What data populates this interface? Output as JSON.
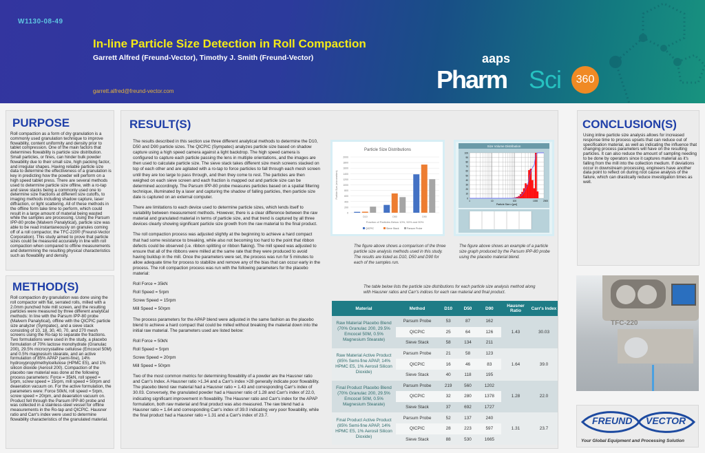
{
  "header": {
    "poster_code": "W1130-08-49",
    "title": "In-line Particle Size Detection in Roll Compaction",
    "authors": "Garrett Alfred (Freund-Vector), Timothy J. Smith (Freund-Vector)",
    "email": "garrett.alfred@freund-vector.com",
    "logo": {
      "aaps": "aaps",
      "pharm": "Pharm",
      "sci": "Sci",
      "num": "360"
    }
  },
  "purpose": {
    "title": "PURPOSE",
    "text": "Roll compaction as a form of dry granulation is a commonly used granulation technique to improve flowability, content uniformity and density prior to tablet compression.  One of the main factors that determines flowability is particle size distribution. Small particles, or fines, can hinder bulk powder flowability due to their small size, high packing factor, and irregular shapes.  Having reliable particle size data to determine the effectiveness of a granulation is key in predicting how the powder will perform on a high speed tablet press.  There are several methods used to determine particle size offline, with a ro-tap and sieve stacks being a commonly used one to determine size fractions at different size cutoffs, to imaging methods including shadow capture, laser diffraction, or light scattering.  All of these methods in the offline form take time to perform, which could result in a large amount of material being wasted while the samples are processing.  Using the Parsum IPP-80 probe (Malvern Panalytical), particle size was able to be read instantaneously on granules coming off of a roll compactor, the TFC-220® (Freund-Vector Corporation).  This study aimed to prove that particle sizes could be measured accurately in line with roll compaction when compared to offline measurements and determining the resulting physical characteristics such as flowability and density."
  },
  "methods": {
    "title": "METHOD(S)",
    "text": "Roll compaction dry granulation was done using the roll compactor with flat, serrated rolls, milled with a 2.0mm punched hole mill screen, and the resulting particles were measured by three different analytical methods: In line with the Parsum IPP-80 probe (Malvern Panalytical), offline with the QICPIC particle size analyzer (Sympatec), and a sieve stack consisting of 10, 18, 30, 40, 70, and 270 mesh screens using the Ro-tap to separate the fractions.  Two formulations were used in the study, a placebo formulation of 70% lactose monohydrate (Granulac 200), 29.5% microcrystalline cellulose (Emcocel 50M) and 0.5% magnesium stearate, and an active formulation of 85% APAP (semi-fine), 14% hydroxypropylmethylcellulose (HPMC E5), and 1% silicon dioxide (Aerosil 200). Compaction of the placebo raw material was done at the following process parameters: Force = 35kN, roll speed = 5rpm, screw speed = 15rpm, mill speed = 50rpm and deaeration vacuum on.  For the active formulation, the parameters were: Force 50kN, roll speed = 5rpm, screw speed = 20rpm, and deaeration vacuum on.  Product fell through the Parsum IPP-80 probe and was collected in a stainless-steel vessel for offline measurements in the Ro-tap and QICPIC.  Hausner ratio and Carr's index were used to determine flowability characteristics of the granulated material."
  },
  "results": {
    "title": "RESULT(S)",
    "p1": "The results described in this section use three different analytical methods to determine the D10, D50 and D90 particle sizes.  The QICPIC (Sympatec) analyzes particle size based on shadow capture using a high speed camera against a light backdrop.  The high speed camera is configured to capture each particle passing the lens in multiple orientations, and the images are then used to calculate particle size.  The sieve stack takes different size mesh screens stacked on top of each other and are agitated with a ro-tap to force particles to fall through each mesh screen until they are too large to pass through, and then they come to rest.  The particles are then weighed on each sieve screen and each fraction is mapped out and particle size can be determined accordingly.  The Parsum IPP-80 probe measures particles based on a spatial filtering technique, illuminated by a laser and capturing the shadow of falling particles, then particle size date is captured on an external computer.",
    "p2": "There are limitations to each device used to determine particle sizes, which lends itself to variability between measurement methods.  However, there is a clear difference between the raw material and granulated material in terms of particle size, and that trend is captured by all three devices clearly showing significant particle size growth from the raw material to the final product.",
    "p3": "The roll compaction process was adjusted slightly at the beginning to achieve a hard compact that had some resistance to breaking, while also not becoming too hard to the point that ribbon defects could be observed (i.e. ribbon splitting or ribbon flaking).  The mill speed was adjusted to ensure that all of the ribbons were milled at the same rate that they were produced to avoid having buildup in the mill.  Once the parameters were set, the process was run for 5 minutes to allow adequate time for process to stabilize and remove any of the bias that can occur early in the process.  The roll compaction process was run with the following parameters for the placebo material:",
    "placebo_params": [
      "Roll Force = 35kN",
      "Roll Speed = 5rpm",
      "Screw Speed = 15rpm",
      "Mill Speed = 50rpm"
    ],
    "p4": "The process parameters for the APAP blend were adjusted in the same fashion as the placebo blend to achieve a hard compact that could be milled without breaking the material down into the initial raw material.  The parameters used are listed below:",
    "apap_params": [
      "Roll Force = 50kN",
      "Roll Speed = 5rpm",
      "Screw Speed = 20rpm",
      "Mill Speed = 50rpm"
    ],
    "p5": "Two of the most common metrics for determining flowability of a powder are the Hausner ratio and Carr's Index.  A Hausner ratio >1.34 and a Carr's index >28 generally indicate poor flowability.  The placebo blend raw material had a Hausner ratio = 1.43 and corresponding Carr's index of 30.03.  Conversely, the granulated powder had a Hausner ratio of 1.28 and Carr's index of 22.0, indicating significant improvement in flowability.  The Hausner ratio and Carr's index for the APAP formulation, both raw material and final product was also measured.  The raw blend had a Hausner ratio = 1.64 and corresponding Carr's index of 39.0 indicating very poor flowability, while the final product had a Hausner ratio = 1.31 and a Carr's index of 23.7.",
    "caption1": "The figure above shows a comparison of the three particle size analysis methods used in this study.  The results are listed as D10, D50 and D90 for each of the samples run.",
    "caption2": "The figure above shows an example of a particle size graph produced by the Parsum IPP-80 probe using the placebo material blend.",
    "table_caption": "The table below lists the particle size distributions for each particle size analysis method along with Hausner ratios and Carr's indices for each raw material and final product."
  },
  "table": {
    "headers": [
      "Material",
      "Method",
      "D10",
      "D50",
      "D90",
      "Hausner Ratio",
      "Carr's Index"
    ],
    "groups": [
      {
        "material": "Raw Material Placebo Blend (70% Granulac 200, 29.5% Emcocel 50M, 0.5% Magnesium Stearate)",
        "hausner": "1.43",
        "carr": "30.03",
        "rows": [
          [
            "Parsum Probe",
            "53",
            "87",
            "162"
          ],
          [
            "QICPIC",
            "25",
            "64",
            "126"
          ],
          [
            "Sieve Stack",
            "58",
            "134",
            "211"
          ]
        ]
      },
      {
        "material": "Raw Material Active Product (85% Semi-fine APAP, 14% HPMC E5, 1% Aerosil Silicon Dioxide)",
        "hausner": "1.64",
        "carr": "39.0",
        "rows": [
          [
            "Parsum Probe",
            "21",
            "58",
            "123"
          ],
          [
            "QICPIC",
            "16",
            "46",
            "83"
          ],
          [
            "Sieve Stack",
            "40",
            "118",
            "195"
          ]
        ]
      },
      {
        "material": "Final Product Placebo Blend (70% Granulac 200, 29.5% Emcocel 50M, 0.5% Magnesium Stearate)",
        "hausner": "1.28",
        "carr": "22.0",
        "rows": [
          [
            "Parsum Probe",
            "219",
            "560",
            "1202"
          ],
          [
            "QICPIC",
            "32",
            "280",
            "1378"
          ],
          [
            "Sieve Stack",
            "37",
            "692",
            "1727"
          ]
        ]
      },
      {
        "material": "Final Product Active Product (85% Semi-fine APAP, 14% HPMC E5, 1% Aerosil Silicon Dioxide)",
        "hausner": "1.31",
        "carr": "23.7",
        "rows": [
          [
            "Parsum Probe",
            "52",
            "137",
            "240"
          ],
          [
            "QICPIC",
            "28",
            "223",
            "597"
          ],
          [
            "Sieve Stack",
            "88",
            "530",
            "1665"
          ]
        ]
      }
    ]
  },
  "conclusion": {
    "title": "CONCLUSION(S)",
    "text": "Using inline particle size analysis allows for increased response time to process upsets that can reduce out of specification material, as well as indicating the influence that changing process parameters will have on the resulting particles.  It can also reduce the amount of sampling needing to be done by operators since it captures material as it's falling from the mill into the collection medium.  If deviations occur in downstream processing, engineers have another data point to reflect on during root cause analysis of the failure, which can drastically reduce investigation times as well."
  },
  "photo": {
    "machine_label": "TFC-220"
  },
  "company_logo": {
    "left": "FREUND",
    "right": "VECTOR",
    "tagline": "Your Global Equipment and Processing Solution"
  },
  "chart_data": [
    {
      "type": "bar",
      "title": "Particle Size Distributions",
      "categories": [
        "D10",
        "D50",
        "D90"
      ],
      "xlabel": "Fraction of Particles Below 10%, 50% and 90%",
      "ylabel": "Particle Size (micrometers)",
      "ylim": [
        0,
        2000
      ],
      "yticks": [
        0,
        200,
        400,
        600,
        800,
        1000,
        1200,
        1400,
        1600,
        1800,
        2000
      ],
      "grid": true,
      "legend": "bottom",
      "series": [
        {
          "name": "QICPIC",
          "color": "#4472c4",
          "values": [
            32,
            280,
            1378
          ]
        },
        {
          "name": "Sieve Stack",
          "color": "#ed7d31",
          "values": [
            37,
            692,
            1727
          ]
        },
        {
          "name": "Parsum Probe",
          "color": "#a5a5a5",
          "values": [
            219,
            560,
            1202
          ]
        }
      ]
    },
    {
      "type": "bar",
      "title": "Size Volume Distribution",
      "xlabel": "Particle Size x [µm]",
      "xscale": "log",
      "xticks": [
        "1",
        "10",
        "100",
        "1000",
        "2000"
      ],
      "ylim": [
        0,
        100
      ],
      "yticks": [
        0,
        10,
        20,
        30,
        40,
        50,
        60,
        70,
        80,
        90,
        100
      ],
      "bar_color": "#ff1010",
      "line_color": "#5a5aff",
      "x": [
        90,
        110,
        130,
        155,
        185,
        220,
        260,
        310,
        370,
        440,
        520,
        620,
        740,
        880,
        1050,
        1250
      ],
      "values": [
        1,
        2,
        3,
        5,
        9,
        14,
        22,
        33,
        30,
        62,
        65,
        40,
        22,
        100,
        15,
        0
      ]
    }
  ]
}
